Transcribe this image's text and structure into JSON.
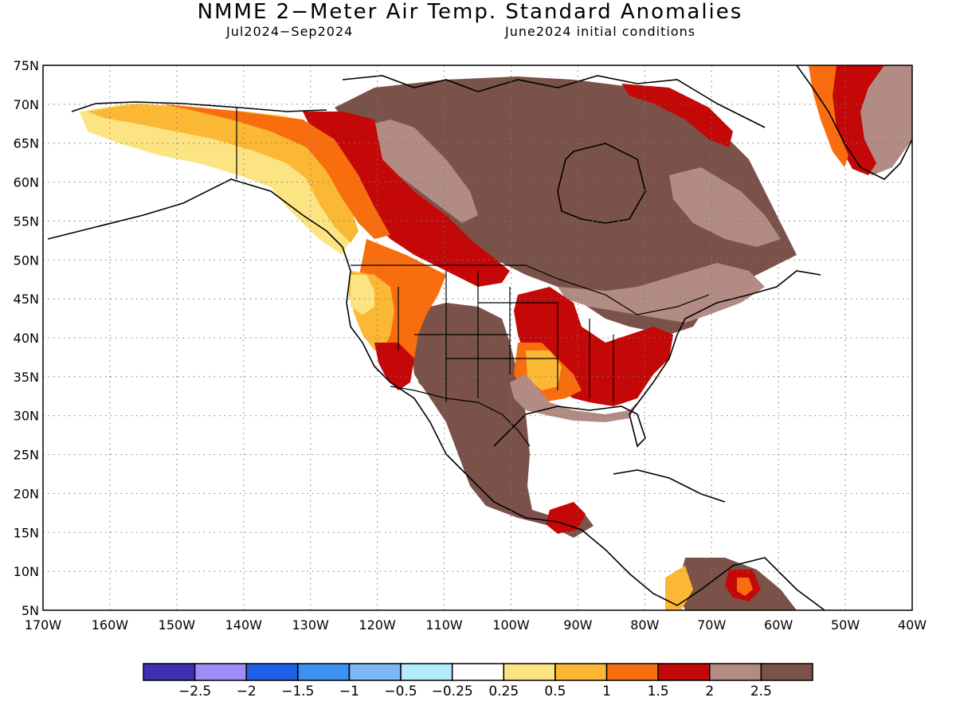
{
  "title": "NMME 2−Meter Air Temp. Standard Anomalies",
  "period": "Jul2024−Sep2024",
  "initial_conditions": "June2024 initial conditions",
  "lat_ticks": [
    "75N",
    "70N",
    "65N",
    "60N",
    "55N",
    "50N",
    "45N",
    "40N",
    "35N",
    "30N",
    "25N",
    "20N",
    "15N",
    "10N",
    "5N"
  ],
  "lon_ticks": [
    "170W",
    "160W",
    "150W",
    "140W",
    "130W",
    "120W",
    "110W",
    "100W",
    "90W",
    "80W",
    "70W",
    "60W",
    "50W",
    "40W"
  ],
  "colorbar": {
    "colors": [
      "#3f2fb5",
      "#a08cf5",
      "#1f5fe6",
      "#3c91ef",
      "#7db7f3",
      "#b3ecfb",
      "#ffffff",
      "#fde483",
      "#fbb834",
      "#f86e0e",
      "#c30807",
      "#b28b84",
      "#7a5249"
    ],
    "labels": [
      "−2.5",
      "−2",
      "−1.5",
      "−1",
      "−0.5",
      "−0.25",
      "0.25",
      "0.5",
      "1",
      "1.5",
      "2",
      "2.5"
    ]
  }
}
